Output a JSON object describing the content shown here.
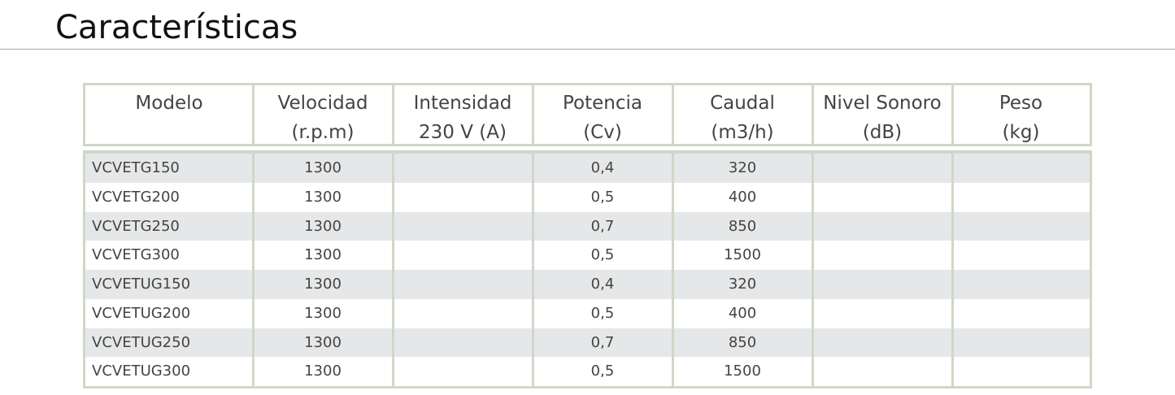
{
  "header": {
    "title": "Características"
  },
  "table": {
    "headers": [
      [
        "Modelo"
      ],
      [
        "Velocidad",
        "(r.p.m)"
      ],
      [
        "Intensidad",
        "230 V (A)"
      ],
      [
        "Potencia",
        "(Cv)"
      ],
      [
        "Caudal",
        "(m3/h)"
      ],
      [
        "Nivel Sonoro",
        "(dB)"
      ],
      [
        "Peso",
        "(kg)"
      ]
    ],
    "rows": [
      [
        "VCVETG150",
        1300,
        null,
        "0,4",
        320,
        null,
        null
      ],
      [
        "VCVETG200",
        1300,
        null,
        "0,5",
        400,
        null,
        null
      ],
      [
        "VCVETG250",
        1300,
        null,
        "0,7",
        850,
        null,
        null
      ],
      [
        "VCVETG300",
        1300,
        null,
        "0,5",
        1500,
        null,
        null
      ],
      [
        "VCVETUG150",
        1300,
        null,
        "0,4",
        320,
        null,
        null
      ],
      [
        "VCVETUG200",
        1300,
        null,
        "0,5",
        400,
        null,
        null
      ],
      [
        "VCVETUG250",
        1300,
        null,
        "0,7",
        850,
        null,
        null
      ],
      [
        "VCVETUG300",
        1300,
        null,
        "0,5",
        1500,
        null,
        null
      ]
    ]
  }
}
